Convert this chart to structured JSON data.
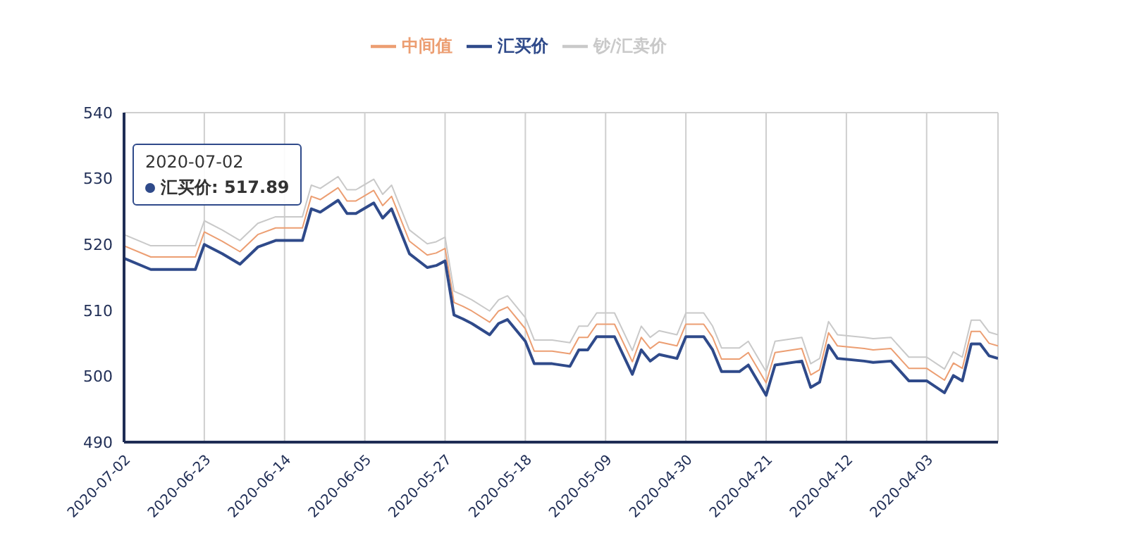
{
  "chart_data": {
    "type": "line",
    "legend": "top",
    "grid": true,
    "x": [
      "2020-07-02",
      "2020-06-29",
      "2020-06-24",
      "2020-06-23",
      "2020-06-21",
      "2020-06-19",
      "2020-06-17",
      "2020-06-15",
      "2020-06-12",
      "2020-06-11",
      "2020-06-10",
      "2020-06-08",
      "2020-06-07",
      "2020-06-06",
      "2020-06-04",
      "2020-06-03",
      "2020-06-02",
      "2020-06-01",
      "2020-05-31",
      "2020-05-29",
      "2020-05-28",
      "2020-05-27",
      "2020-05-26",
      "2020-05-25",
      "2020-05-24",
      "2020-05-22",
      "2020-05-21",
      "2020-05-20",
      "2020-05-18",
      "2020-05-17",
      "2020-05-15",
      "2020-05-13",
      "2020-05-12",
      "2020-05-11",
      "2020-05-10",
      "2020-05-08",
      "2020-05-06",
      "2020-05-05",
      "2020-05-04",
      "2020-05-03",
      "2020-05-01",
      "2020-04-30",
      "2020-04-28",
      "2020-04-27",
      "2020-04-26",
      "2020-04-24",
      "2020-04-23",
      "2020-04-21",
      "2020-04-20",
      "2020-04-17",
      "2020-04-16",
      "2020-04-15",
      "2020-04-14",
      "2020-04-13",
      "2020-04-10",
      "2020-04-09",
      "2020-04-07",
      "2020-04-05",
      "2020-04-03",
      "2020-04-01",
      "2020-03-31",
      "2020-03-30",
      "2020-03-29",
      "2020-03-28",
      "2020-03-27",
      "2020-03-26"
    ],
    "series": [
      {
        "name": "中间值",
        "color": "#ec9e72",
        "values": [
          519.8,
          518.1,
          518.1,
          521.9,
          520.5,
          518.9,
          521.5,
          522.5,
          522.5,
          527.3,
          526.8,
          528.6,
          526.6,
          526.6,
          528.2,
          525.9,
          527.3,
          523.9,
          520.5,
          518.4,
          518.7,
          519.4,
          511.2,
          510.6,
          509.9,
          508.2,
          509.9,
          510.5,
          507.2,
          503.8,
          503.8,
          503.4,
          505.9,
          505.9,
          507.9,
          507.9,
          502.2,
          505.9,
          504.2,
          505.2,
          504.6,
          507.9,
          507.9,
          505.9,
          502.6,
          502.6,
          503.6,
          499.0,
          503.6,
          504.2,
          500.2,
          501.0,
          506.6,
          504.6,
          504.2,
          504.0,
          504.2,
          501.2,
          501.2,
          499.4,
          502.0,
          501.2,
          506.8,
          506.8,
          505.0,
          504.6
        ]
      },
      {
        "name": "汇买价",
        "color": "#2f4a8a",
        "values": [
          517.9,
          516.2,
          516.2,
          520.0,
          518.6,
          517.0,
          519.6,
          520.6,
          520.6,
          525.4,
          524.9,
          526.7,
          524.7,
          524.7,
          526.3,
          524.0,
          525.4,
          522.0,
          518.6,
          516.5,
          516.8,
          517.5,
          509.3,
          508.7,
          508.0,
          506.3,
          508.0,
          508.6,
          505.3,
          501.9,
          501.9,
          501.5,
          504.0,
          504.0,
          506.0,
          506.0,
          500.3,
          504.0,
          502.3,
          503.3,
          502.7,
          506.0,
          506.0,
          504.0,
          500.7,
          500.7,
          501.7,
          497.1,
          501.7,
          502.3,
          498.3,
          499.1,
          504.7,
          502.7,
          502.3,
          502.1,
          502.3,
          499.3,
          499.3,
          497.5,
          500.1,
          499.3,
          504.9,
          504.9,
          503.1,
          502.7
        ]
      },
      {
        "name": "钞/汇卖价",
        "color": "#c9c9c9",
        "values": [
          521.5,
          519.8,
          519.8,
          523.6,
          522.2,
          520.6,
          523.2,
          524.2,
          524.2,
          529.0,
          528.5,
          530.3,
          528.3,
          528.3,
          529.9,
          527.6,
          529.0,
          525.6,
          522.2,
          520.1,
          520.4,
          521.1,
          512.9,
          512.3,
          511.6,
          509.9,
          511.6,
          512.2,
          508.9,
          505.5,
          505.5,
          505.1,
          507.6,
          507.6,
          509.6,
          509.6,
          503.9,
          507.6,
          505.9,
          506.9,
          506.3,
          509.6,
          509.6,
          507.6,
          504.3,
          504.3,
          505.3,
          500.7,
          505.3,
          505.9,
          501.9,
          502.7,
          508.3,
          506.3,
          505.9,
          505.7,
          505.9,
          502.9,
          502.9,
          501.1,
          503.7,
          502.9,
          508.5,
          508.5,
          506.7,
          506.3
        ]
      }
    ],
    "xlim": [
      "2020-07-02",
      "2020-03-26"
    ],
    "xticks": [
      "2020-07-02",
      "2020-06-23",
      "2020-06-14",
      "2020-06-05",
      "2020-05-27",
      "2020-05-18",
      "2020-05-09",
      "2020-04-30",
      "2020-04-21",
      "2020-04-12",
      "2020-04-03"
    ],
    "ylim": [
      490,
      540
    ],
    "yticks": [
      490,
      500,
      510,
      520,
      530,
      540
    ],
    "annotations": [
      "2020-07-02",
      "汇买价: 517.89"
    ]
  }
}
